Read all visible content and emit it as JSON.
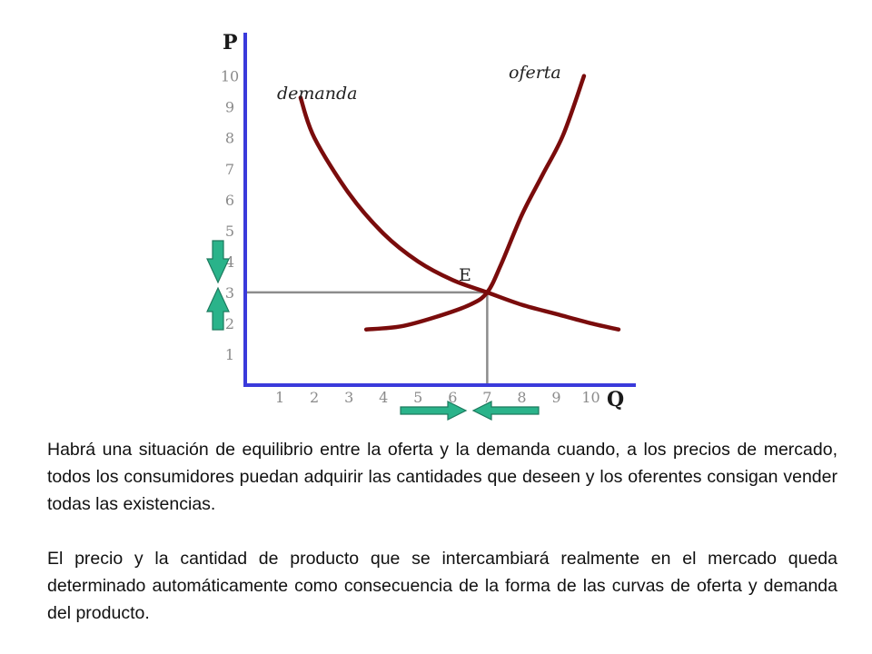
{
  "chart_data": {
    "type": "line",
    "xlabel": "Q",
    "ylabel": "P",
    "xlim": [
      0,
      11.3
    ],
    "ylim": [
      0,
      11.4
    ],
    "x_ticks": [
      "1",
      "2",
      "3",
      "4",
      "5",
      "6",
      "7",
      "8",
      "9",
      "10"
    ],
    "y_ticks": [
      "1",
      "2",
      "3",
      "4",
      "5",
      "6",
      "7",
      "8",
      "9",
      "10"
    ],
    "series": [
      {
        "name": "demanda",
        "color": "#7a0c0c",
        "x": [
          1.6,
          2.0,
          3.0,
          4.0,
          5.0,
          6.0,
          7.0,
          8.0,
          9.0,
          10.0,
          10.8
        ],
        "y": [
          9.3,
          8.0,
          6.2,
          4.9,
          4.0,
          3.4,
          3.0,
          2.6,
          2.3,
          2.0,
          1.8
        ]
      },
      {
        "name": "oferta",
        "color": "#7a0c0c",
        "x": [
          3.5,
          4.5,
          5.5,
          6.5,
          7.0,
          7.4,
          8.0,
          8.6,
          9.2,
          9.8
        ],
        "y": [
          1.8,
          1.9,
          2.2,
          2.6,
          3.0,
          3.9,
          5.5,
          6.8,
          8.1,
          10.0
        ]
      }
    ],
    "equilibrium": {
      "label": "E",
      "x": 7,
      "y": 3
    },
    "arrows": [
      {
        "axis": "y",
        "direction": "down",
        "color": "#2ab38a"
      },
      {
        "axis": "y",
        "direction": "up",
        "color": "#2ab38a"
      },
      {
        "axis": "x",
        "direction": "right",
        "color": "#2ab38a"
      },
      {
        "axis": "x",
        "direction": "left",
        "color": "#2ab38a"
      }
    ],
    "axis_color": "#3a3adb",
    "guide_color": "#8c8c8c"
  },
  "text": {
    "p1": "Habrá una situación de equilibrio entre la oferta y la demanda cuando, a los precios de mercado, todos los consumidores puedan adquirir las cantidades que deseen y los oferentes consigan vender todas las existencias.",
    "p2": "El precio y la cantidad de producto que se intercambiará realmente en el mercado queda determinado automáticamente como consecuencia de la forma de las curvas de oferta y demanda del producto."
  }
}
